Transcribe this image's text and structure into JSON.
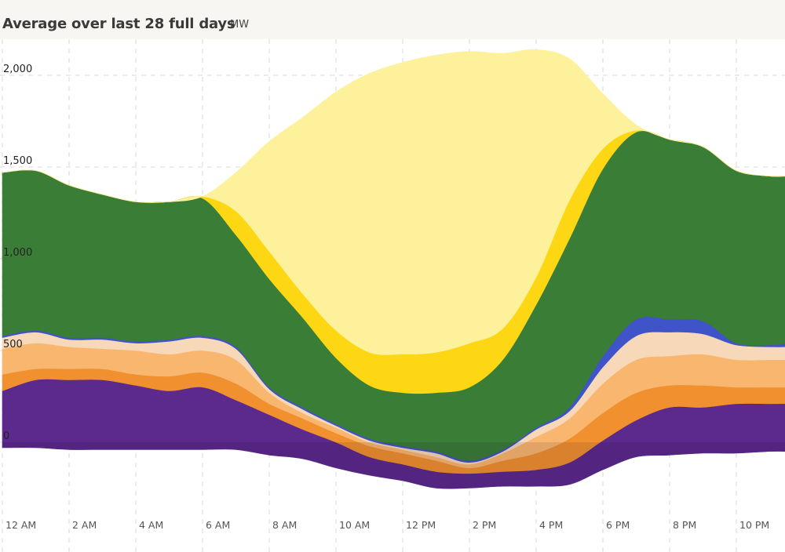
{
  "header": {
    "title": "Average over last 28 full days",
    "unit": "MW"
  },
  "chart_data": {
    "type": "area",
    "stacked": true,
    "title": "Average over last 28 full days",
    "ylabel": "MW",
    "xlabel": "",
    "x_hours": [
      0,
      1,
      2,
      3,
      4,
      5,
      6,
      7,
      8,
      9,
      10,
      11,
      12,
      13,
      14,
      15,
      16,
      17,
      18,
      19,
      20,
      21,
      22,
      23,
      23.5
    ],
    "x_tick_hours": [
      0,
      2,
      4,
      6,
      8,
      10,
      12,
      14,
      16,
      18,
      20,
      22
    ],
    "x_tick_labels": [
      "12 AM",
      "2 AM",
      "4 AM",
      "6 AM",
      "8 AM",
      "10 AM",
      "12 PM",
      "2 PM",
      "4 PM",
      "6 PM",
      "8 PM",
      "10 PM"
    ],
    "y_ticks": [
      0,
      500,
      1000,
      1500,
      2000
    ],
    "y_tick_labels": [
      "0",
      "500",
      "1,000",
      "1,500",
      "2,000"
    ],
    "ylim": [
      -400,
      2300
    ],
    "grid": true,
    "baseline": [
      -30,
      -30,
      -40,
      -40,
      -40,
      -40,
      -40,
      -40,
      -70,
      -90,
      -140,
      -180,
      -210,
      -250,
      -250,
      -240,
      -240,
      -230,
      -150,
      -80,
      -70,
      -60,
      -60,
      -50,
      -50
    ],
    "series": [
      {
        "color": "#5b2a8c",
        "values": [
          310,
          370,
          380,
          380,
          350,
          320,
          340,
          270,
          220,
          160,
          140,
          100,
          90,
          90,
          80,
          80,
          90,
          120,
          160,
          200,
          260,
          250,
          270,
          260,
          260
        ]
      },
      {
        "color": "#f0902e",
        "values": [
          90,
          60,
          60,
          60,
          60,
          80,
          80,
          90,
          60,
          60,
          50,
          60,
          60,
          60,
          30,
          60,
          90,
          130,
          150,
          150,
          120,
          120,
          90,
          90,
          90
        ]
      },
      {
        "color": "#f9b66e",
        "values": [
          140,
          140,
          120,
          110,
          130,
          120,
          120,
          130,
          60,
          30,
          30,
          20,
          20,
          20,
          20,
          40,
          90,
          110,
          160,
          180,
          160,
          170,
          150,
          150,
          150
        ]
      },
      {
        "color": "#f7d8b8",
        "values": [
          60,
          60,
          40,
          50,
          40,
          70,
          70,
          60,
          20,
          20,
          10,
          10,
          10,
          20,
          10,
          10,
          40,
          40,
          90,
          130,
          130,
          110,
          80,
          70,
          70
        ]
      },
      {
        "color": "#3f54c9",
        "values": [
          10,
          10,
          10,
          10,
          10,
          10,
          10,
          10,
          10,
          10,
          10,
          10,
          10,
          10,
          10,
          10,
          10,
          20,
          60,
          90,
          70,
          70,
          10,
          10,
          20
        ]
      },
      {
        "color": "#3a7d37",
        "values": [
          890,
          870,
          830,
          780,
          760,
          750,
          750,
          610,
          590,
          490,
          360,
          290,
          290,
          320,
          400,
          490,
          670,
          920,
          1020,
          1020,
          980,
          950,
          940,
          920,
          910
        ]
      },
      {
        "color": "#fdd714",
        "values": [
          0,
          0,
          0,
          0,
          0,
          0,
          10,
          130,
          150,
          130,
          150,
          180,
          210,
          220,
          240,
          170,
          150,
          210,
          110,
          10,
          0,
          0,
          0,
          0,
          0
        ]
      },
      {
        "color": "#fdf29b",
        "values": [
          0,
          0,
          0,
          0,
          0,
          0,
          0,
          210,
          600,
          960,
          1300,
          1520,
          1590,
          1620,
          1590,
          1500,
          1240,
          770,
          300,
          30,
          0,
          0,
          0,
          0,
          0
        ]
      }
    ]
  }
}
